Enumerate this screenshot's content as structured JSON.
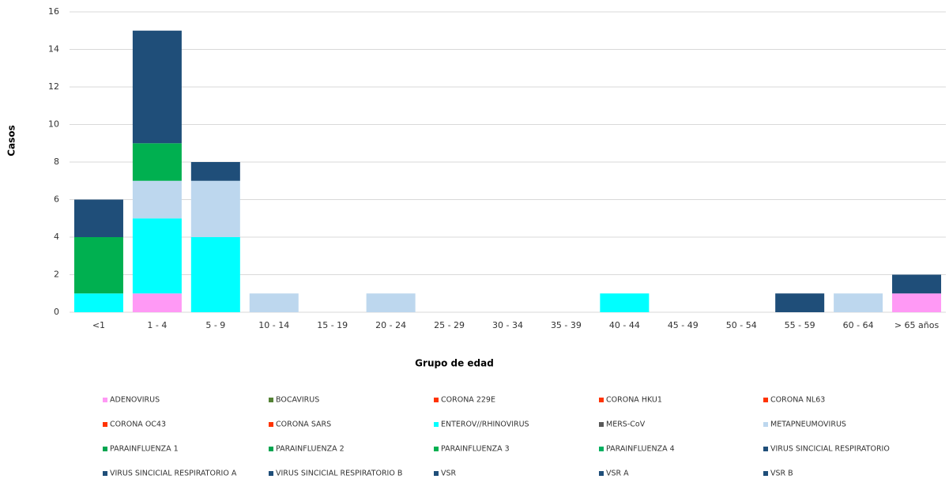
{
  "chart_data": {
    "type": "stacked_bar",
    "x_label": "Grupo de edad",
    "y_label": "Casos",
    "categories": [
      "<1",
      "1 - 4",
      "5 - 9",
      "10 - 14",
      "15 - 19",
      "20 - 24",
      "25 - 29",
      "30 - 34",
      "35 - 39",
      "40 - 44",
      "45 - 49",
      "50 - 54",
      "55 - 59",
      "60 - 64",
      "> 65 años"
    ],
    "ylim": [
      0,
      16
    ],
    "yticks": [
      0,
      2,
      4,
      6,
      8,
      10,
      12,
      14,
      16
    ],
    "grid": true,
    "series": [
      {
        "name": "ADENOVIRUS",
        "color": "#ff99f5",
        "values": [
          0,
          1,
          0,
          0,
          0,
          0,
          0,
          0,
          0,
          0,
          0,
          0,
          0,
          0,
          1
        ]
      },
      {
        "name": "BOCAVIRUS",
        "color": "#548235",
        "values": [
          0,
          0,
          0,
          0,
          0,
          0,
          0,
          0,
          0,
          0,
          0,
          0,
          0,
          0,
          0
        ]
      },
      {
        "name": "CORONA 229E",
        "color": "#ff3300",
        "values": [
          0,
          0,
          0,
          0,
          0,
          0,
          0,
          0,
          0,
          0,
          0,
          0,
          0,
          0,
          0
        ]
      },
      {
        "name": "CORONA HKU1",
        "color": "#ff3300",
        "values": [
          0,
          0,
          0,
          0,
          0,
          0,
          0,
          0,
          0,
          0,
          0,
          0,
          0,
          0,
          0
        ]
      },
      {
        "name": "CORONA NL63",
        "color": "#ff3300",
        "values": [
          0,
          0,
          0,
          0,
          0,
          0,
          0,
          0,
          0,
          0,
          0,
          0,
          0,
          0,
          0
        ]
      },
      {
        "name": "CORONA OC43",
        "color": "#ff3300",
        "values": [
          0,
          0,
          0,
          0,
          0,
          0,
          0,
          0,
          0,
          0,
          0,
          0,
          0,
          0,
          0
        ]
      },
      {
        "name": "CORONA SARS",
        "color": "#ff3300",
        "values": [
          0,
          0,
          0,
          0,
          0,
          0,
          0,
          0,
          0,
          0,
          0,
          0,
          0,
          0,
          0
        ]
      },
      {
        "name": "ENTEROV//RHINOVIRUS",
        "color": "#00ffff",
        "values": [
          1,
          4,
          4,
          0,
          0,
          0,
          0,
          0,
          0,
          1,
          0,
          0,
          0,
          0,
          0
        ]
      },
      {
        "name": "MERS-CoV",
        "color": "#595959",
        "values": [
          0,
          0,
          0,
          0,
          0,
          0,
          0,
          0,
          0,
          0,
          0,
          0,
          0,
          0,
          0
        ]
      },
      {
        "name": "METAPNEUMOVIRUS",
        "color": "#bdd7ee",
        "values": [
          0,
          2,
          3,
          1,
          0,
          1,
          0,
          0,
          0,
          0,
          0,
          0,
          0,
          1,
          0
        ]
      },
      {
        "name": "PARAINFLUENZA 1",
        "color": "#00a550",
        "values": [
          0,
          0,
          0,
          0,
          0,
          0,
          0,
          0,
          0,
          0,
          0,
          0,
          0,
          0,
          0
        ]
      },
      {
        "name": "PARAINFLUENZA 2",
        "color": "#00a550",
        "values": [
          0,
          0,
          0,
          0,
          0,
          0,
          0,
          0,
          0,
          0,
          0,
          0,
          0,
          0,
          0
        ]
      },
      {
        "name": "PARAINFLUENZA 3",
        "color": "#00b050",
        "values": [
          3,
          2,
          0,
          0,
          0,
          0,
          0,
          0,
          0,
          0,
          0,
          0,
          0,
          0,
          0
        ]
      },
      {
        "name": "PARAINFLUENZA 4",
        "color": "#00b060",
        "values": [
          0,
          0,
          0,
          0,
          0,
          0,
          0,
          0,
          0,
          0,
          0,
          0,
          0,
          0,
          0
        ]
      },
      {
        "name": "VIRUS SINCICIAL RESPIRATORIO",
        "color": "#1f4e79",
        "values": [
          2,
          6,
          1,
          0,
          0,
          0,
          0,
          0,
          0,
          0,
          0,
          0,
          1,
          0,
          1
        ]
      },
      {
        "name": "VIRUS SINCICIAL RESPIRATORIO A",
        "color": "#1f4e79",
        "values": [
          0,
          0,
          0,
          0,
          0,
          0,
          0,
          0,
          0,
          0,
          0,
          0,
          0,
          0,
          0
        ]
      },
      {
        "name": "VIRUS SINCICIAL RESPIRATORIO B",
        "color": "#1f4e79",
        "values": [
          0,
          0,
          0,
          0,
          0,
          0,
          0,
          0,
          0,
          0,
          0,
          0,
          0,
          0,
          0
        ]
      },
      {
        "name": "VSR",
        "color": "#1f4e79",
        "values": [
          0,
          0,
          0,
          0,
          0,
          0,
          0,
          0,
          0,
          0,
          0,
          0,
          0,
          0,
          0
        ]
      },
      {
        "name": "VSR A",
        "color": "#1f4e79",
        "values": [
          0,
          0,
          0,
          0,
          0,
          0,
          0,
          0,
          0,
          0,
          0,
          0,
          0,
          0,
          0
        ]
      },
      {
        "name": "VSR B",
        "color": "#1f4e79",
        "values": [
          0,
          0,
          0,
          0,
          0,
          0,
          0,
          0,
          0,
          0,
          0,
          0,
          0,
          0,
          0
        ]
      }
    ]
  }
}
